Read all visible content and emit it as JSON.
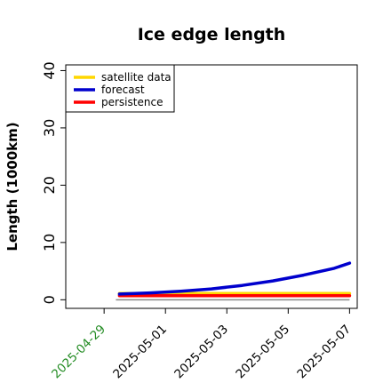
{
  "chart_data": {
    "type": "line",
    "title": "Ice edge length",
    "xlabel": "",
    "ylabel": "Length (1000km)",
    "ylim": [
      -1.5,
      41
    ],
    "yticks": [
      0,
      10,
      20,
      30,
      40
    ],
    "xlim": [
      "2025-04-27T18:00",
      "2025-05-07T06:00"
    ],
    "x": [
      "2025-04-29T12:00",
      "2025-04-30T12:00",
      "2025-05-01T12:00",
      "2025-05-02T12:00",
      "2025-05-03T12:00",
      "2025-05-04T12:00",
      "2025-05-05T12:00",
      "2025-05-06T12:00",
      "2025-05-07T00:00"
    ],
    "xticks": [
      {
        "date": "2025-04-29",
        "label": "2025-04-29",
        "color": "#228b22"
      },
      {
        "date": "2025-05-01",
        "label": "2025-05-01",
        "color": "#000000"
      },
      {
        "date": "2025-05-03",
        "label": "2025-05-03",
        "color": "#000000"
      },
      {
        "date": "2025-05-05",
        "label": "2025-05-05",
        "color": "#000000"
      },
      {
        "date": "2025-05-07",
        "label": "2025-05-07",
        "color": "#000000"
      }
    ],
    "series": [
      {
        "name": "satellite data",
        "color": "#ffd700",
        "values": [
          1.1,
          1.1,
          1.1,
          1.1,
          1.1,
          1.1,
          1.1,
          1.1,
          1.1
        ]
      },
      {
        "name": "persistence",
        "color": "#ff0000",
        "values": [
          0.7,
          0.7,
          0.7,
          0.7,
          0.7,
          0.7,
          0.7,
          0.7,
          0.7
        ]
      },
      {
        "name": "forecast",
        "color": "#0000cd",
        "values": [
          1.0,
          1.2,
          1.5,
          1.9,
          2.5,
          3.3,
          4.3,
          5.5,
          6.4
        ]
      }
    ],
    "legend": {
      "position": "top-left",
      "order": [
        "satellite data",
        "forecast",
        "persistence"
      ]
    },
    "grid": false
  }
}
